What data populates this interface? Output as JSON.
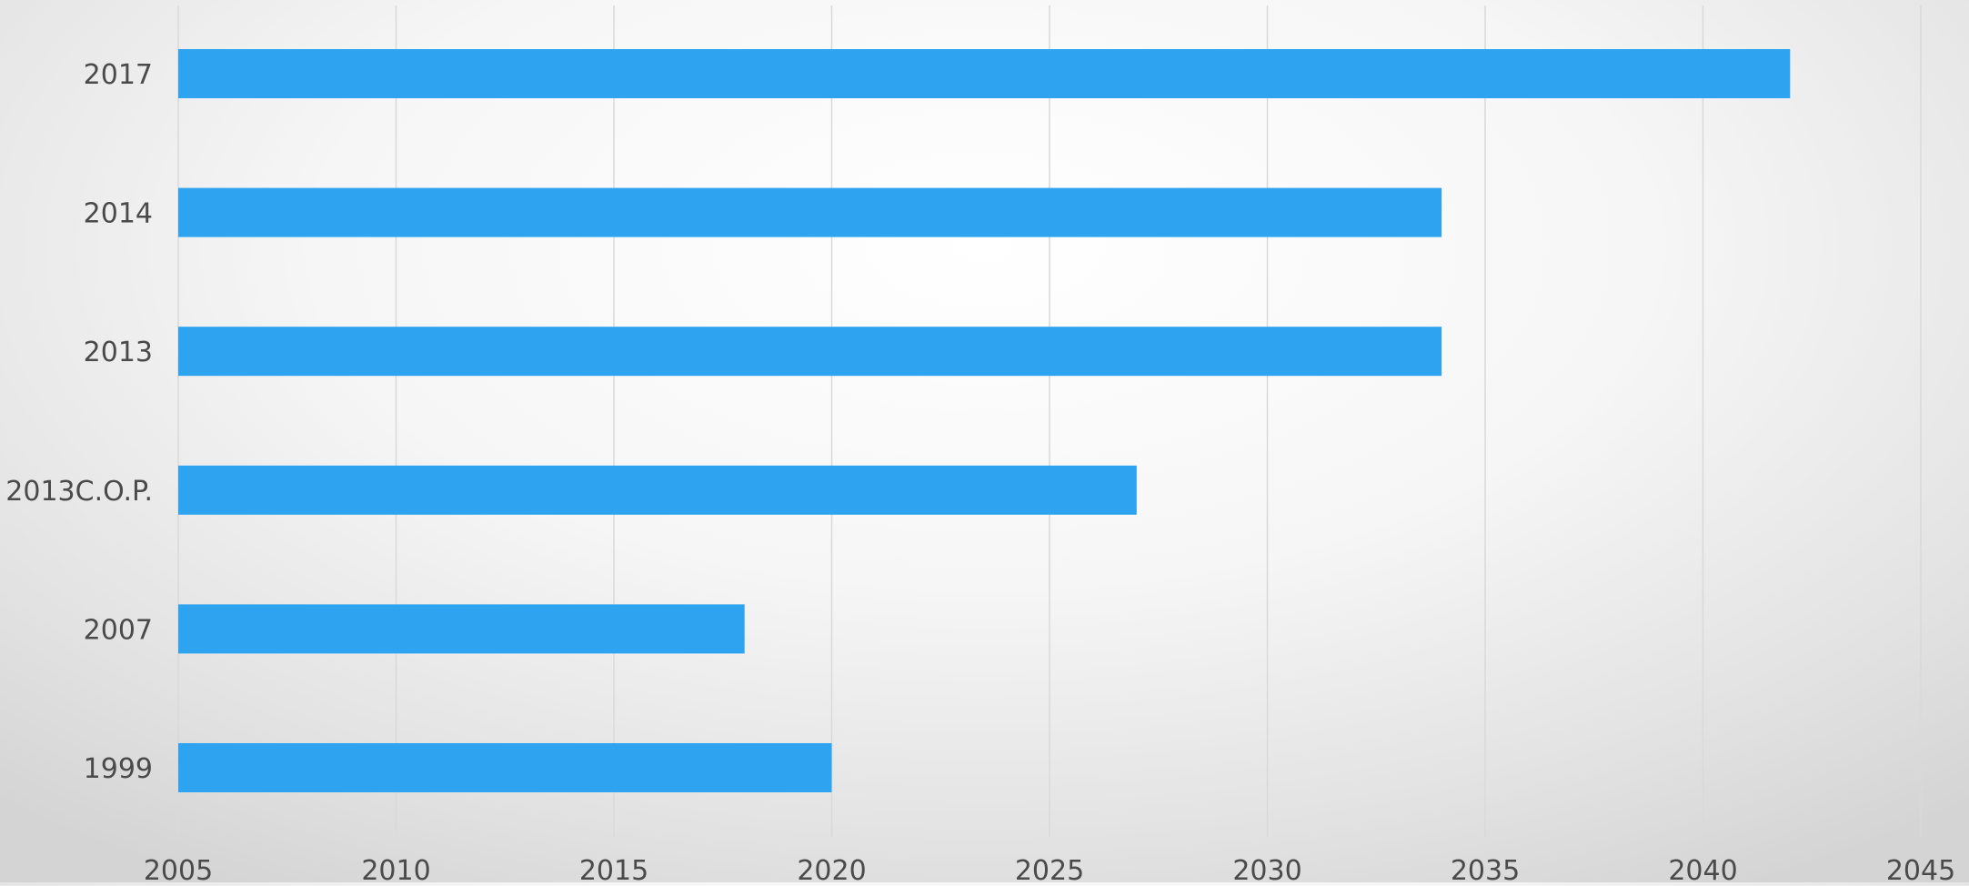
{
  "chart_data": {
    "type": "bar",
    "orientation": "horizontal",
    "categories": [
      "2017",
      "2014",
      "2013",
      "2013C.O.P.",
      "2007",
      "1999"
    ],
    "values": [
      2042,
      2034,
      2034,
      2027,
      2018,
      2020
    ],
    "xlim": [
      2005,
      2045
    ],
    "xticks": [
      "2005",
      "2010",
      "2015",
      "2020",
      "2025",
      "2030",
      "2035",
      "2040",
      "2045"
    ],
    "title": "",
    "xlabel": "",
    "ylabel": "",
    "grid": "vertical",
    "legend": "none",
    "bar_color": "#2ea3ef",
    "grid_color": "#d9d9d9"
  }
}
